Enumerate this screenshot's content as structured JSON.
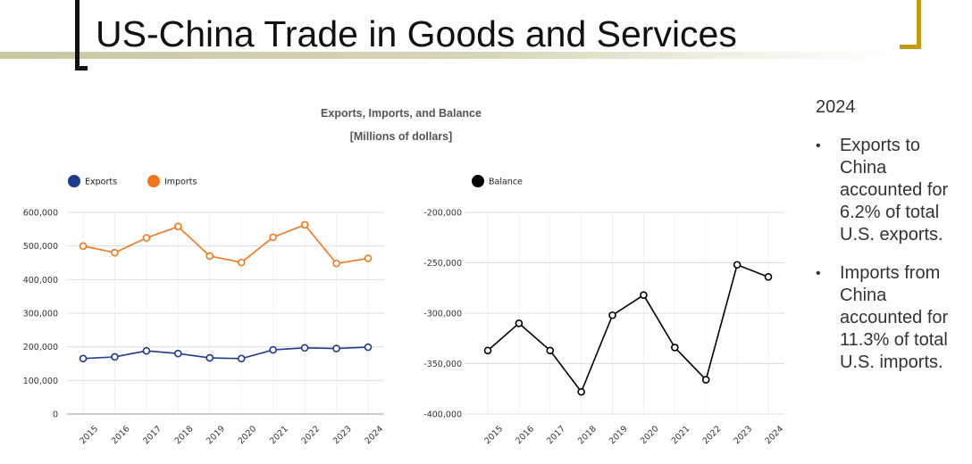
{
  "slide": {
    "title": "US-China Trade in Goods and Services"
  },
  "side_panel": {
    "year": "2024",
    "bullets": [
      "Exports to China accounted for 6.2% of total U.S. exports.",
      "Imports from China accounted for 11.3% of total U.S. imports."
    ]
  },
  "chart_data": [
    {
      "type": "line",
      "title": "Exports, Imports, and Balance",
      "subtitle": "[Millions of dollars]",
      "x": [
        "2015",
        "2016",
        "2017",
        "2018",
        "2019",
        "2020",
        "2021",
        "2022",
        "2023",
        "2024"
      ],
      "ylim": [
        0,
        600000
      ],
      "yticks": [
        "0",
        "100,000",
        "200,000",
        "300,000",
        "400,000",
        "500,000",
        "600,000"
      ],
      "legend_placement": "top-left",
      "grid": true,
      "series": [
        {
          "name": "Exports",
          "color": "#1f3a93",
          "values": [
            165000,
            170000,
            188000,
            180000,
            167000,
            165000,
            191000,
            197000,
            195000,
            199000
          ]
        },
        {
          "name": "Imports",
          "color": "#f4761b",
          "values": [
            500000,
            480000,
            524000,
            558000,
            470000,
            451000,
            526000,
            563000,
            448000,
            463000
          ]
        }
      ]
    },
    {
      "type": "line",
      "x": [
        "2015",
        "2016",
        "2017",
        "2018",
        "2019",
        "2020",
        "2021",
        "2022",
        "2023",
        "2024"
      ],
      "ylim": [
        -400000,
        -200000
      ],
      "yticks": [
        "-400,000",
        "-350,000",
        "-300,000",
        "-250,000",
        "-200,000"
      ],
      "legend_placement": "top-left",
      "grid": true,
      "series": [
        {
          "name": "Balance",
          "color": "#000000",
          "values": [
            -337000,
            -310000,
            -337000,
            -378000,
            -302000,
            -282000,
            -334000,
            -366000,
            -252000,
            -264000
          ]
        }
      ]
    }
  ]
}
